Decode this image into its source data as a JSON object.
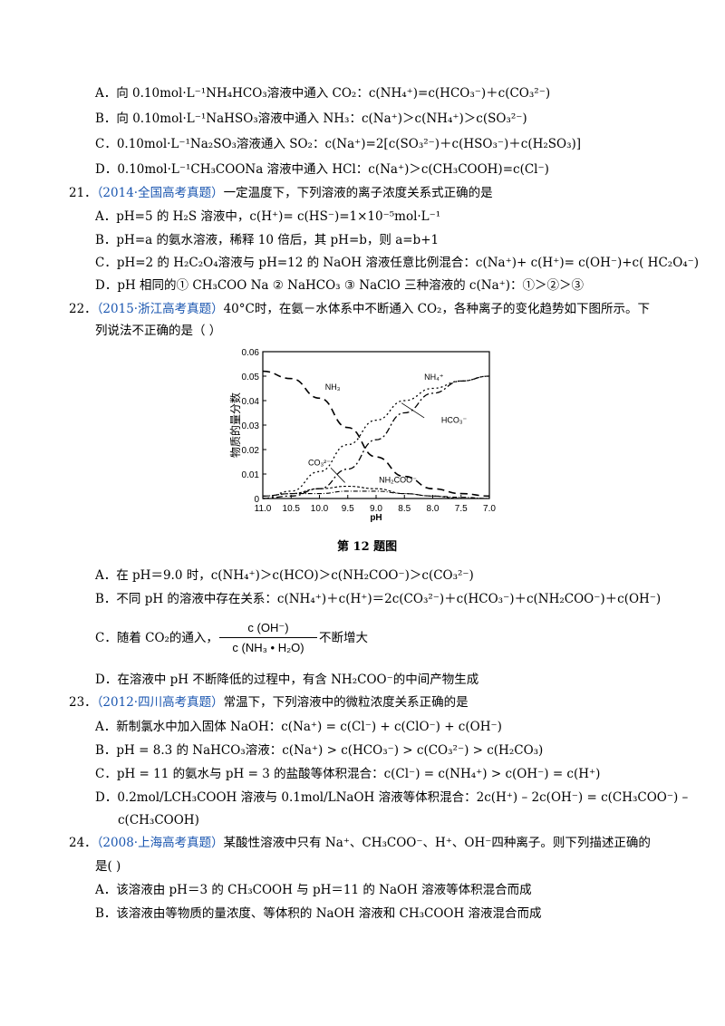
{
  "q20": {
    "optA": "A．向 0.10mol·L⁻¹NH₄HCO₃溶液中通入 CO₂：c(NH₄⁺)=c(HCO₃⁻)＋c(CO₃²⁻)",
    "optB": "B．向 0.10mol·L⁻¹NaHSO₃溶液中通入 NH₃：c(Na⁺)＞c(NH₄⁺)＞c(SO₃²⁻)",
    "optC": "C．0.10mol·L⁻¹Na₂SO₃溶液通入 SO₂：c(Na⁺)=2[c(SO₃²⁻)＋c(HSO₃⁻)＋c(H₂SO₃)]",
    "optD": "D．0.10mol·L⁻¹CH₃COONa 溶液中通入 HCl：c(Na⁺)＞c(CH₃COOH)=c(Cl⁻)"
  },
  "q21": {
    "num": "21．",
    "source": "（2014·全国高考真题）",
    "stem": "一定温度下，下列溶液的离子浓度关系式正确的是",
    "optA": "A．pH=5 的 H₂S 溶液中，c(H⁺)= c(HS⁻)=1×10⁻⁵mol·L⁻¹",
    "optB": "B．pH=a 的氨水溶液，稀释 10 倍后，其 pH=b，则 a=b+1",
    "optC": "C．pH=2 的 H₂C₂O₄溶液与 pH=12 的 NaOH 溶液任意比例混合：c(Na⁺)+ c(H⁺)= c(OH⁻)+c( HC₂O₄⁻)",
    "optD": "D．pH 相同的① CH₃COO Na ② NaHCO₃ ③ NaClO 三种溶液的 c(Na⁺)：①＞②＞③"
  },
  "q22": {
    "num": "22．",
    "source": "（2015·浙江高考真题）",
    "stem1": "40°C时，在氨－水体系中不断通入 CO₂，各种离子的变化趋势如下图所示。下",
    "stem2": "列说法不正确的是（  ）",
    "caption": "第 12 题图",
    "optA": "A．在 pH＝9.0 时，c(NH₄⁺)＞c(HCO)＞c(NH₂COO⁻)＞c(CO₃²⁻)",
    "optB": "B．不同 pH 的溶液中存在关系：c(NH₄⁺)＋c(H⁺)＝2c(CO₃²⁻)＋c(HCO₃⁻)＋c(NH₂COO⁻)＋c(OH⁻)",
    "optC_pre": "C．随着 CO₂的通入，",
    "optC_num": "c (OH⁻)",
    "optC_den": "c (NH₃ • H₂O)",
    "optC_post": "不断增大",
    "optD": "D．在溶液中 pH 不断降低的过程中，有含 NH₂COO⁻的中间产物生成"
  },
  "q23": {
    "num": "23．",
    "source": "（2012·四川高考真题）",
    "stem": "常温下，下列溶液中的微粒浓度关系正确的是",
    "optA": "A．新制氯水中加入固体 NaOH：c(Na⁺) = c(Cl⁻) + c(ClO⁻) + c(OH⁻)",
    "optB": "B．pH = 8.3 的 NaHCO₃溶液：c(Na⁺) > c(HCO₃⁻) > c(CO₃²⁻) > c(H₂CO₃)",
    "optC": "C．pH = 11 的氨水与 pH = 3 的盐酸等体积混合：c(Cl⁻) = c(NH₄⁺) > c(OH⁻) = c(H⁺)",
    "optD1": "D．0.2mol/LCH₃COOH 溶液与 0.1mol/LNaOH 溶液等体积混合：2c(H⁺) – 2c(OH⁻) = c(CH₃COO⁻) –",
    "optD2": "c(CH₃COOH)"
  },
  "q24": {
    "num": "24．",
    "source": "（2008·上海高考真题）",
    "stem1": "某酸性溶液中只有 Na⁺、CH₃COO⁻、H⁺、OH⁻四种离子。则下列描述正确的",
    "stem2": "是( )",
    "optA": "A．该溶液由 pH＝3 的 CH₃COOH 与 pH＝11 的 NaOH 溶液等体积混合而成",
    "optB": "B．该溶液由等物质的量浓度、等体积的 NaOH 溶液和 CH₃COOH 溶液混合而成"
  },
  "chart_data": {
    "type": "line",
    "title": "",
    "ylabel": "物质的量分数",
    "xlabel": "pH",
    "xlim": [
      11.0,
      7.0
    ],
    "ylim": [
      0,
      0.06
    ],
    "xticks": [
      "11.0",
      "10.5",
      "10.0",
      "9.5",
      "9.0",
      "8.5",
      "8.0",
      "7.5",
      "7.0"
    ],
    "yticks": [
      "0",
      "0.01",
      "0.02",
      "0.03",
      "0.04",
      "0.05",
      "0.06"
    ],
    "series": [
      {
        "name": "NH₃",
        "x": [
          11.0,
          10.5,
          10.0,
          9.5,
          9.0,
          8.5,
          8.0,
          7.5,
          7.0
        ],
        "values": [
          0.052,
          0.049,
          0.041,
          0.029,
          0.017,
          0.009,
          0.004,
          0.002,
          0.001
        ]
      },
      {
        "name": "NH₄⁺",
        "x": [
          11.0,
          10.5,
          10.0,
          9.5,
          9.0,
          8.5,
          8.0,
          7.5,
          7.0
        ],
        "values": [
          0.0,
          0.003,
          0.011,
          0.022,
          0.032,
          0.04,
          0.045,
          0.048,
          0.05
        ]
      },
      {
        "name": "HCO₃⁻",
        "x": [
          11.0,
          10.5,
          10.0,
          9.5,
          9.0,
          8.5,
          8.0,
          7.5,
          7.0
        ],
        "values": [
          0.0,
          0.001,
          0.004,
          0.012,
          0.024,
          0.035,
          0.043,
          0.048,
          0.05
        ]
      },
      {
        "name": "CO₃²⁻",
        "x": [
          11.0,
          10.5,
          10.0,
          9.5,
          9.0,
          8.5,
          8.0,
          7.5,
          7.0
        ],
        "values": [
          0.001,
          0.002,
          0.004,
          0.005,
          0.004,
          0.002,
          0.001,
          0.0,
          0.0
        ]
      },
      {
        "name": "NH₂COO⁻",
        "x": [
          11.0,
          10.5,
          10.0,
          9.5,
          9.0,
          8.5,
          8.0,
          7.5,
          7.0
        ],
        "values": [
          0.001,
          0.002,
          0.002,
          0.003,
          0.003,
          0.002,
          0.001,
          0.0005,
          0.0
        ]
      }
    ],
    "caption": "第 12 题图"
  }
}
